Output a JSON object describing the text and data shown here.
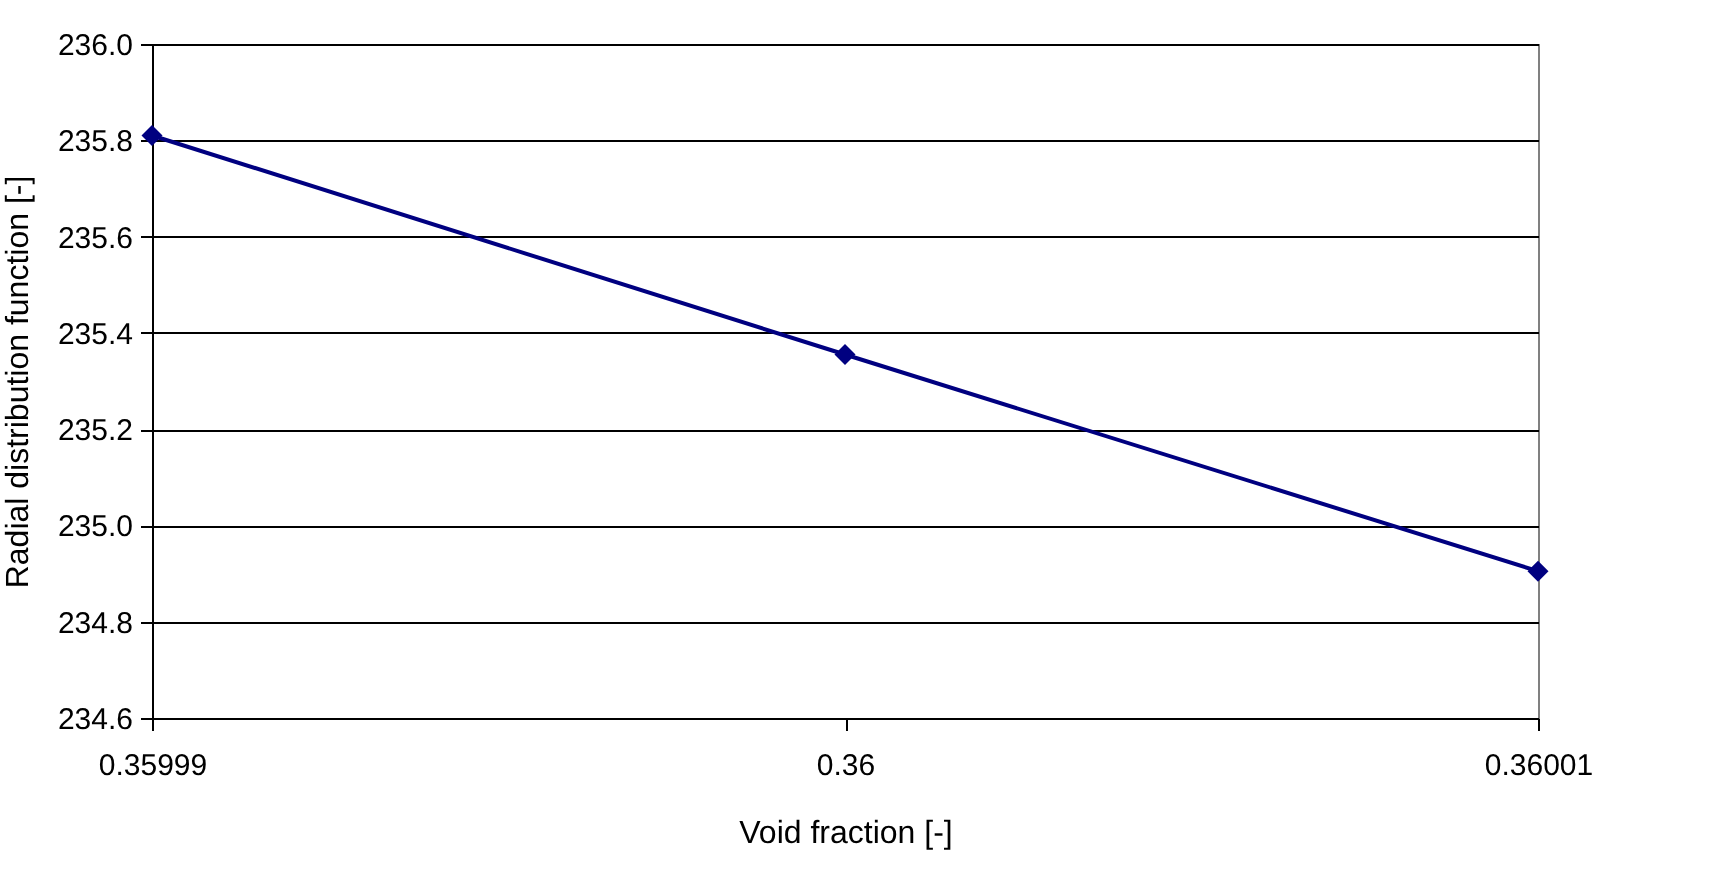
{
  "chart_data": {
    "type": "line",
    "xlabel": "Void fraction [-]",
    "ylabel": "Radial distribution function [-]",
    "x": [
      0.35999,
      0.36,
      0.36001
    ],
    "series": [
      {
        "color": "#000080",
        "values": [
          235.81,
          235.355,
          234.905
        ]
      }
    ],
    "xlim": [
      0.35999,
      0.36001
    ],
    "xticks": [
      0.35999,
      0.36,
      0.36001
    ],
    "ylim": [
      234.6,
      236.0
    ],
    "yticks": [
      {
        "value": 234.6,
        "label": "234.6"
      },
      {
        "value": 234.8,
        "label": "234.8"
      },
      {
        "value": 235,
        "label": "235.0"
      },
      {
        "value": 235.2,
        "label": "235.2"
      },
      {
        "value": 235.4,
        "label": "235.4"
      },
      {
        "value": 235.6,
        "label": "235.6"
      },
      {
        "value": 235.8,
        "label": "235.8"
      },
      {
        "value": 236,
        "label": "236.0"
      }
    ],
    "grid": "y",
    "marker": "diamond",
    "line_style": "solid"
  }
}
